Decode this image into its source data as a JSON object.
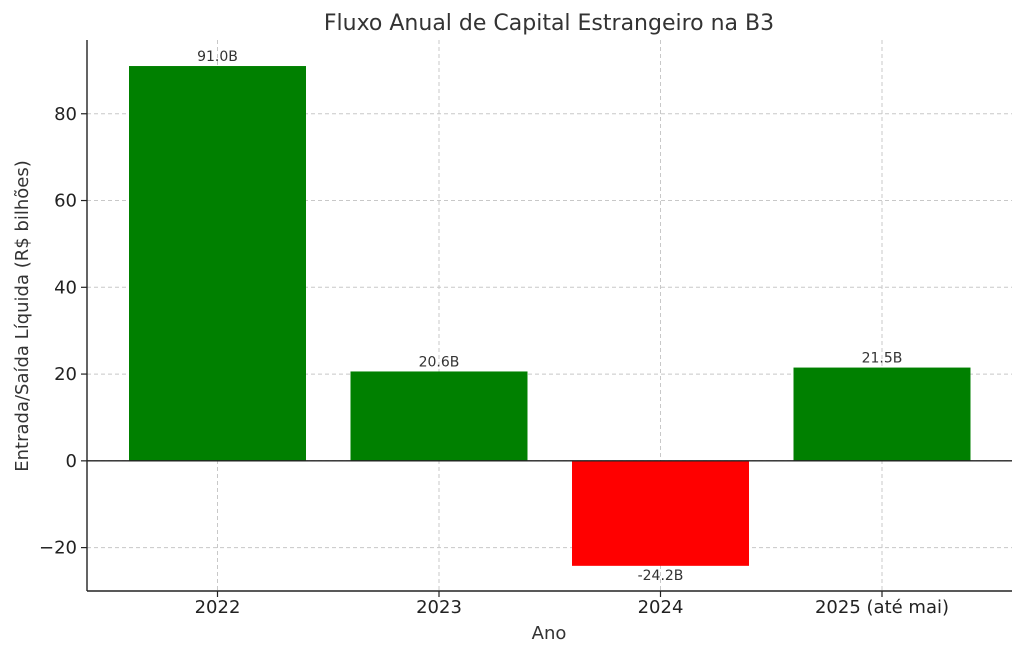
{
  "chart_data": {
    "type": "bar",
    "title": "Fluxo Anual de Capital Estrangeiro na B3",
    "xlabel": "Ano",
    "ylabel": "Entrada/Saída Líquida (R$ bilhões)",
    "categories": [
      "2022",
      "2023",
      "2024",
      "2025 (até mai)"
    ],
    "values": [
      91.0,
      20.6,
      -24.2,
      21.5
    ],
    "data_labels": [
      "91.0B",
      "20.6B",
      "-24.2B",
      "21.5B"
    ],
    "ylim": [
      -30,
      97
    ],
    "yticks": [
      -20,
      0,
      20,
      40,
      60,
      80
    ],
    "ytick_labels": [
      "−20",
      "0",
      "20",
      "40",
      "60",
      "80"
    ],
    "grid": true,
    "colors": {
      "positive": "#008000",
      "negative": "#ff0000"
    }
  }
}
